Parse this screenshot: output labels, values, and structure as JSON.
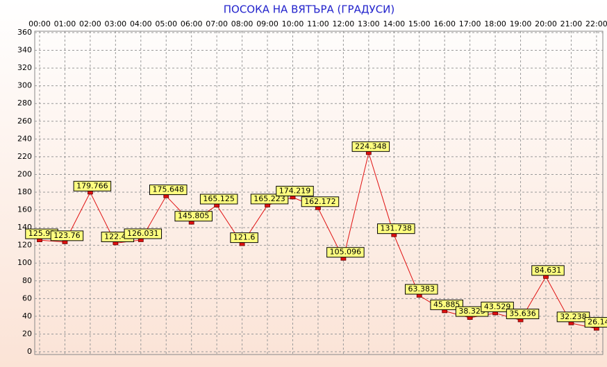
{
  "chart_data": {
    "type": "line",
    "title": "ПОСОКА НА ВЯТЪРА    (ГРАДУСИ)",
    "categories": [
      "00:00",
      "01:00",
      "02:00",
      "03:00",
      "04:00",
      "05:00",
      "06:00",
      "07:00",
      "08:00",
      "09:00",
      "10:00",
      "11:00",
      "12:00",
      "13:00",
      "14:00",
      "15:00",
      "16:00",
      "17:00",
      "18:00",
      "19:00",
      "20:00",
      "21:00",
      "22:00"
    ],
    "series": [
      {
        "color": "#e01010",
        "values": [
          125.93,
          123.76,
          179.766,
          122.49,
          126.031,
          175.648,
          145.805,
          165.125,
          121.6,
          165.223,
          174.219,
          162.172,
          105.096,
          224.348,
          131.738,
          63.383,
          45.885,
          38.325,
          43.529,
          35.636,
          84.631,
          32.238,
          26.14
        ]
      }
    ],
    "ylim": [
      0,
      360
    ],
    "yticks": [
      0,
      20,
      40,
      60,
      80,
      100,
      120,
      140,
      160,
      180,
      200,
      220,
      240,
      260,
      280,
      300,
      320,
      340,
      360
    ],
    "grid": true
  }
}
